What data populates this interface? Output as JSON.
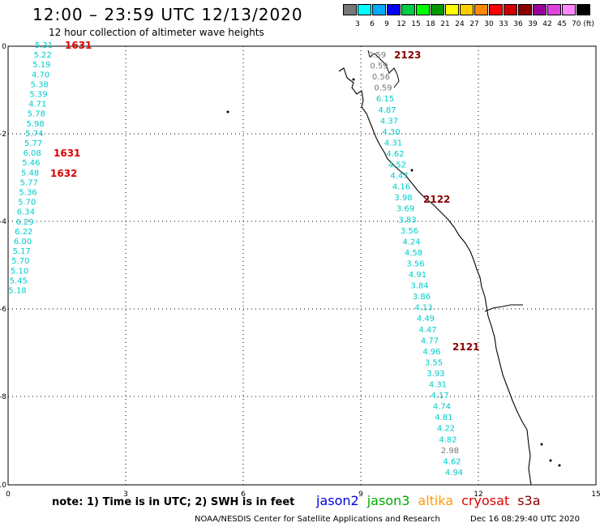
{
  "header": {
    "title": "12:00 – 23:59 UTC 12/13/2020",
    "subtitle": "12 hour collection of altimeter wave heights"
  },
  "color_scale": {
    "swatches": [
      "#777777",
      "#00ffff",
      "#00aaff",
      "#0000ff",
      "#00cc44",
      "#00ff00",
      "#009900",
      "#ffff00",
      "#ffcc00",
      "#ff8800",
      "#ff0000",
      "#cc0000",
      "#880000",
      "#990099",
      "#dd44dd",
      "#ff88ff",
      "#000000"
    ],
    "labels": [
      "3",
      "6",
      "9",
      "12",
      "15",
      "18",
      "21",
      "24",
      "27",
      "30",
      "33",
      "36",
      "39",
      "42",
      "45",
      "70 (ft)"
    ]
  },
  "axes": {
    "x_ticks": [
      "0",
      "3",
      "6",
      "9",
      "12",
      "15"
    ],
    "y_ticks": [
      "0",
      "-2",
      "-4",
      "-6",
      "-8",
      "-10"
    ]
  },
  "tracks": {
    "left_values": [
      "5.31",
      "5.22",
      "5.19",
      "4.70",
      "5.38",
      "5.39",
      "4.71",
      "5.78",
      "5.98",
      "5.74",
      "5.77",
      "6.08",
      "5.46",
      "5.48",
      "5.77",
      "5.36",
      "5.70",
      "6.34",
      "6.29",
      "6.22",
      "6.00",
      "5.17",
      "5.70",
      "5.10",
      "5.45",
      "5.18"
    ],
    "right_values": [
      "0.59",
      "0.59",
      "0.56",
      "0.59",
      "6.15",
      "4.87",
      "4.37",
      "4.30",
      "4.31",
      "4.62",
      "4.52",
      "4.47",
      "4.16",
      "3.98",
      "3.69",
      "3.83",
      "3.56",
      "4.24",
      "4.58",
      "3.56",
      "4.91",
      "3.84",
      "3.86",
      "4.13",
      "4.49",
      "4.47",
      "4.77",
      "4.96",
      "3.55",
      "3.93",
      "4.31",
      "4.17",
      "4.74",
      "4.81",
      "4.22",
      "4.82",
      "2.98",
      "4.62",
      "4.94"
    ],
    "time_labels": [
      "1631",
      "1631",
      "1632",
      "2123",
      "2122",
      "2121"
    ]
  },
  "footer": {
    "note": "note: 1) Time is in UTC; 2) SWH is in feet",
    "satellites": [
      {
        "name": "jason2",
        "color": "#0000dd"
      },
      {
        "name": "jason3",
        "color": "#00aa00"
      },
      {
        "name": "altika",
        "color": "#ff9900"
      },
      {
        "name": "cryosat",
        "color": "#dd0000"
      },
      {
        "name": "s3a",
        "color": "#880000"
      }
    ],
    "credit": "NOAA/NESDIS Center for Satellite Applications and Research",
    "timestamp": "Dec 16 08:29:40 UTC 2020"
  }
}
